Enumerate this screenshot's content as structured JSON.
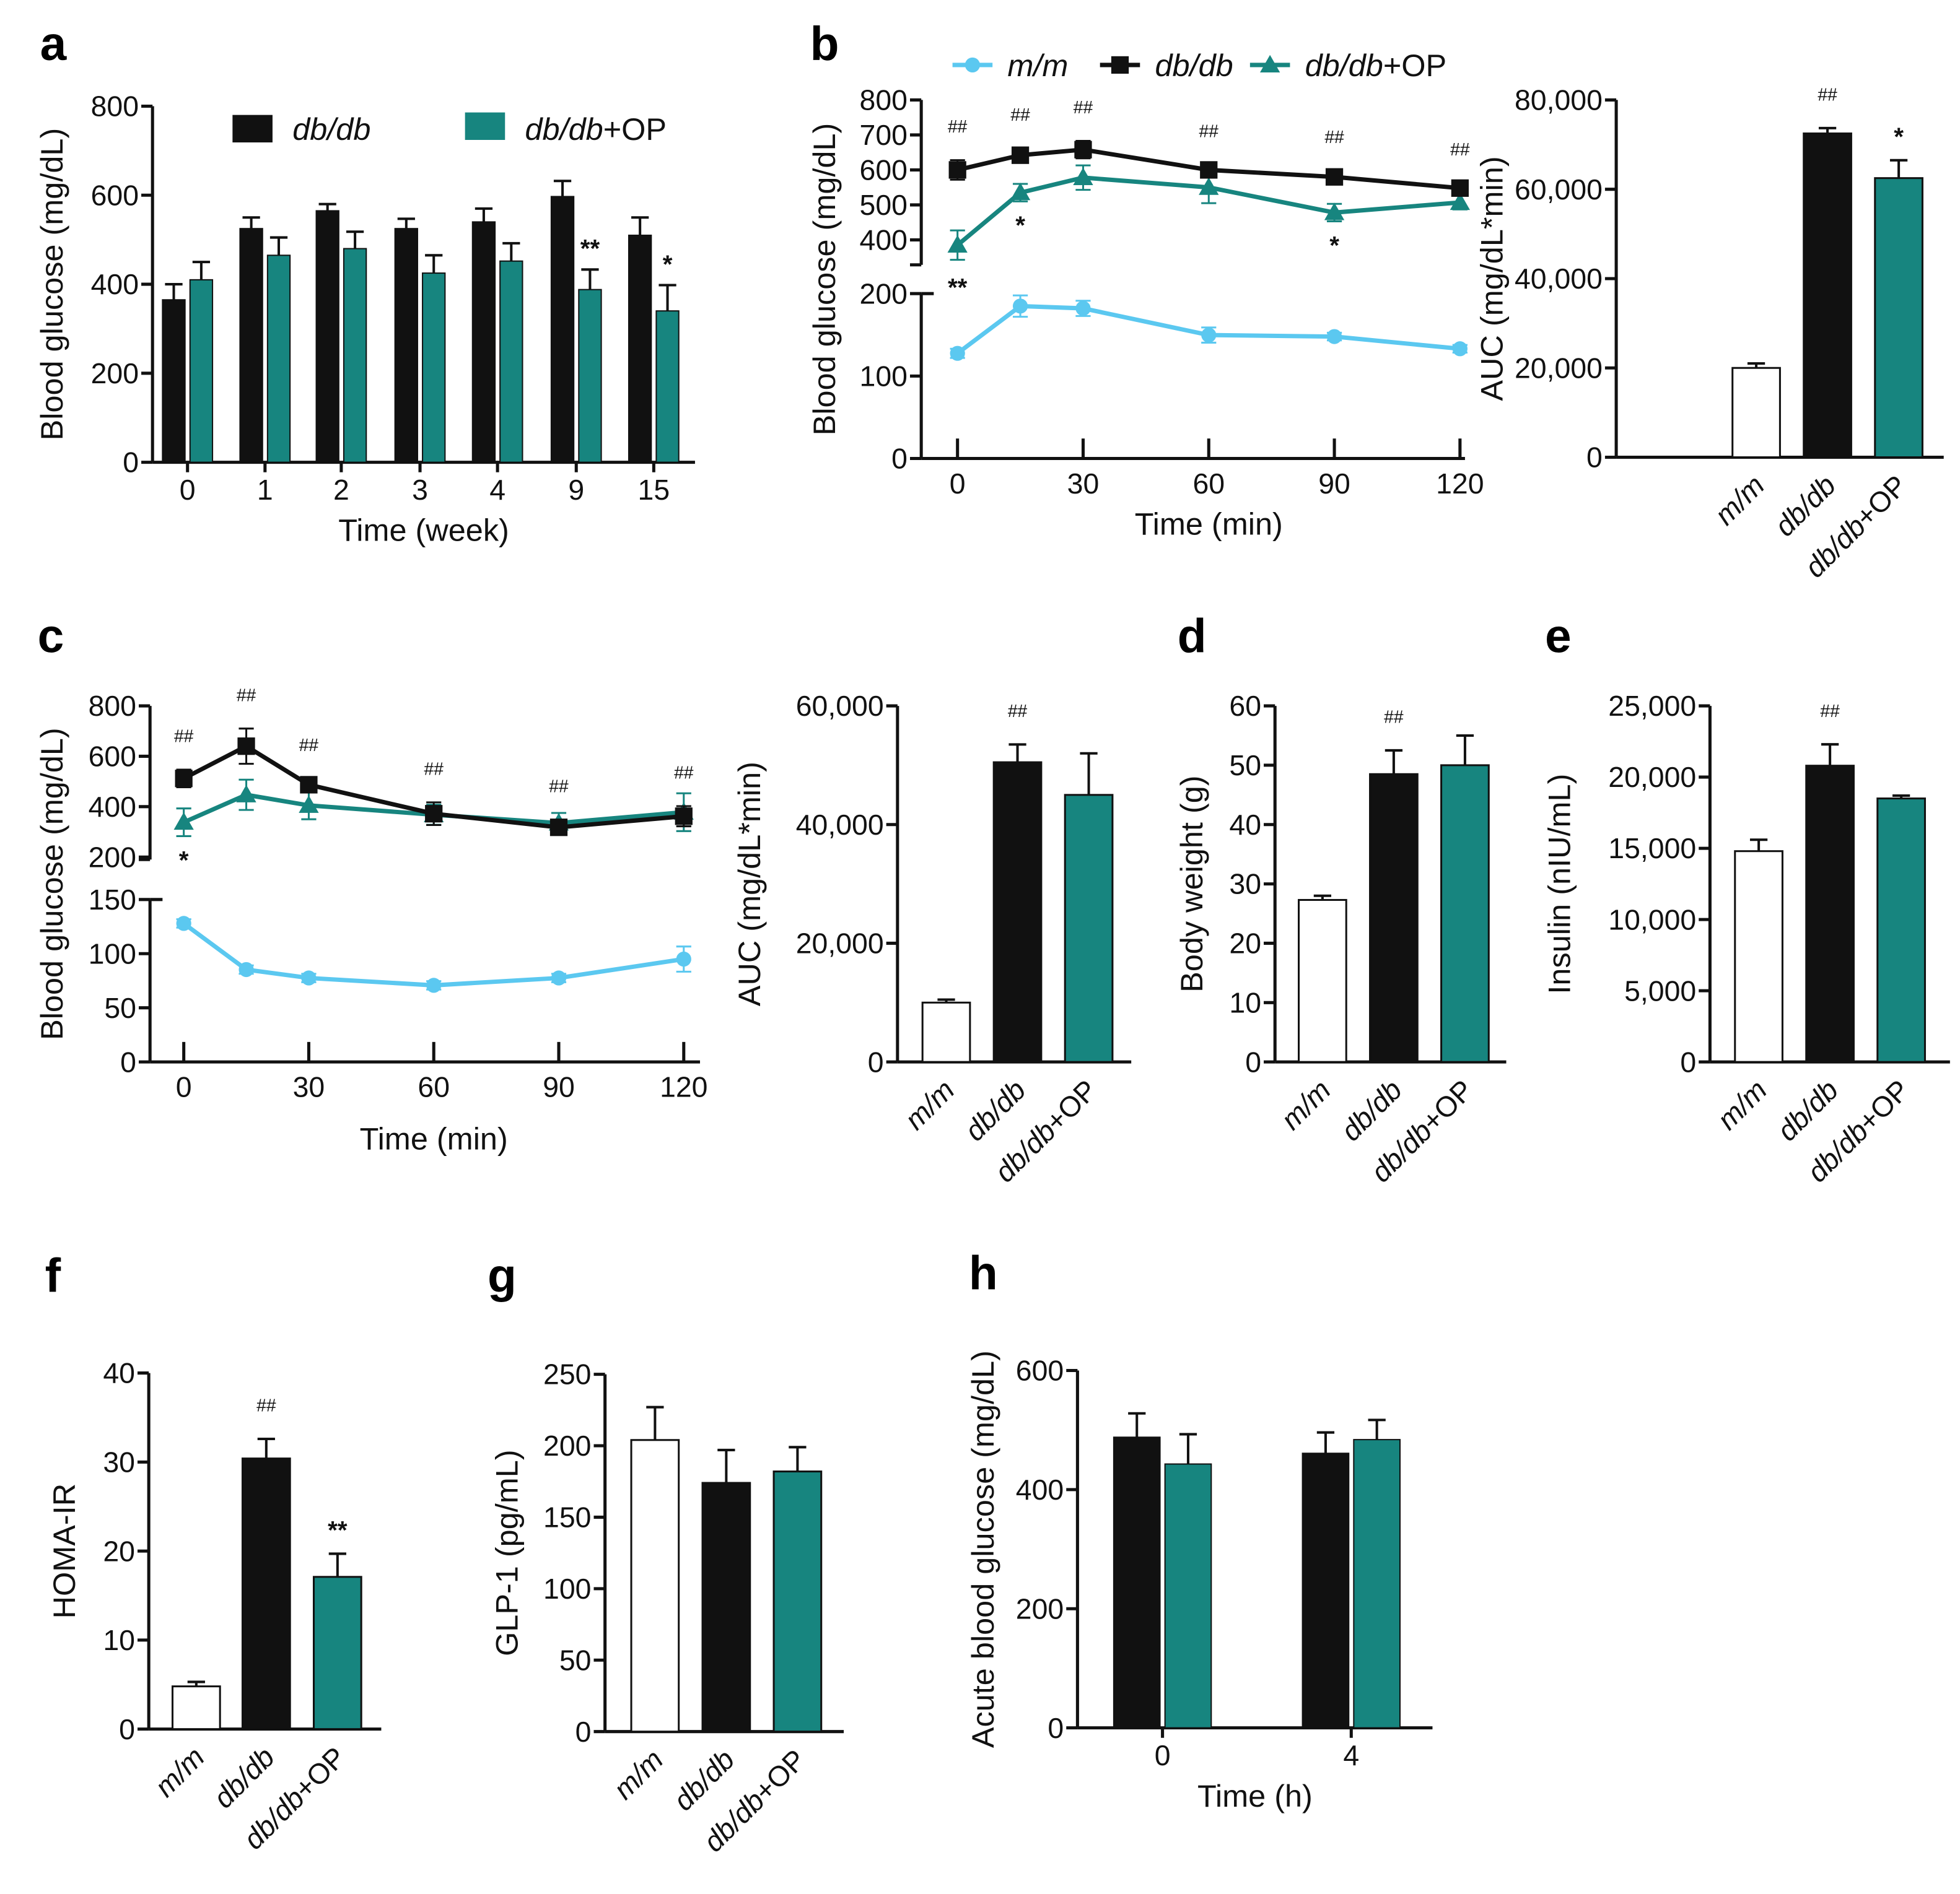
{
  "colors": {
    "mm": "#5bc8f0",
    "db": "#111111",
    "op": "#17857f",
    "mm_bar": "#ffffff"
  },
  "chart_data": [
    {
      "id": "a",
      "type": "bar",
      "letter": "a",
      "ylabel": "Blood glucose (mg/dL)",
      "xlabel": "Time (week)",
      "ylim": [
        0,
        800
      ],
      "yticks": [
        "0",
        "200",
        "400",
        "600",
        "800"
      ],
      "categories": [
        "0",
        "1",
        "2",
        "3",
        "4",
        "9",
        "15"
      ],
      "legend": [
        "db/db",
        "db/db+OP"
      ],
      "series": [
        {
          "name": "db/db",
          "values": [
            365,
            525,
            565,
            525,
            540,
            597,
            510
          ],
          "errors": [
            35,
            25,
            15,
            22,
            30,
            35,
            40
          ]
        },
        {
          "name": "db/db+OP",
          "values": [
            410,
            465,
            480,
            425,
            452,
            388,
            340
          ],
          "errors": [
            40,
            40,
            38,
            40,
            40,
            45,
            58
          ],
          "sig": [
            "",
            "",
            "",
            "",
            "",
            "**",
            "*"
          ]
        }
      ]
    },
    {
      "id": "b1",
      "type": "line",
      "letter": "b",
      "ylabel": "Blood glucose (mg/dL)",
      "xlabel": "Time (min)",
      "x": [
        0,
        15,
        30,
        60,
        90,
        120
      ],
      "xticks": [
        "0",
        "30",
        "60",
        "90",
        "120"
      ],
      "yticks_upper": [
        "400",
        "500",
        "600",
        "700",
        "800"
      ],
      "yticks_lower": [
        "0",
        "100",
        "200"
      ],
      "ylim_lower": [
        0,
        200
      ],
      "ylim_upper": [
        400,
        800
      ],
      "legend": [
        "m/m",
        "db/db",
        "db/db+OP"
      ],
      "series": [
        {
          "name": "m/m",
          "values": [
            138,
            200,
            197,
            162,
            160,
            144
          ],
          "errors": [
            6,
            14,
            10,
            10,
            5,
            5
          ]
        },
        {
          "name": "db/db",
          "values": [
            600,
            642,
            658,
            600,
            580,
            548
          ],
          "errors": [
            28,
            20,
            25,
            15,
            18,
            15
          ]
        },
        {
          "name": "db/db+OP",
          "values": [
            385,
            535,
            578,
            550,
            478,
            507
          ],
          "errors": [
            42,
            25,
            35,
            45,
            25,
            20
          ]
        }
      ],
      "hash": [
        "##",
        "##",
        "##",
        "##",
        "##",
        "##"
      ],
      "op_sig": [
        "",
        "*",
        "",
        "",
        "*",
        ""
      ],
      "mm_sig": [
        "**",
        "",
        "",
        "",
        "",
        ""
      ]
    },
    {
      "id": "b2",
      "type": "bar3",
      "ylabel": "AUC  (mg/dL*min)",
      "ylim": [
        0,
        80000
      ],
      "yticks": [
        "0",
        "20,000",
        "40,000",
        "60,000",
        "80,000"
      ],
      "categories": [
        "m/m",
        "db/db",
        "db/db+OP"
      ],
      "values": [
        20000,
        72500,
        62500
      ],
      "errors": [
        1000,
        1200,
        4000
      ],
      "sig": [
        "",
        "##",
        "*"
      ]
    },
    {
      "id": "c1",
      "type": "line",
      "letter": "c",
      "ylabel": "Blood glucose (mg/dL)",
      "xlabel": "Time (min)",
      "x": [
        0,
        15,
        30,
        60,
        90,
        120
      ],
      "xticks": [
        "0",
        "30",
        "60",
        "90",
        "120"
      ],
      "yticks_upper": [
        "200",
        "400",
        "600",
        "800"
      ],
      "yticks_lower": [
        "0",
        "50",
        "100",
        "150"
      ],
      "ylim_lower": [
        0,
        150
      ],
      "ylim_upper": [
        200,
        800
      ],
      "series": [
        {
          "name": "m/m",
          "values": [
            132,
            88,
            80,
            73,
            80,
            98
          ],
          "errors": [
            4,
            4,
            4,
            4,
            4,
            12
          ]
        },
        {
          "name": "db/db",
          "values": [
            512,
            640,
            487,
            372,
            318,
            362
          ],
          "errors": [
            35,
            70,
            25,
            45,
            30,
            40
          ]
        },
        {
          "name": "db/db+OP",
          "values": [
            338,
            447,
            405,
            368,
            335,
            378
          ],
          "errors": [
            55,
            60,
            55,
            40,
            40,
            75
          ]
        }
      ],
      "hash": [
        "##",
        "##",
        "##",
        "##",
        "##",
        "##"
      ],
      "op_sig": [
        "*",
        "",
        "",
        "",
        "",
        ""
      ],
      "mm_sig": [
        "",
        "",
        "",
        "",
        "",
        ""
      ]
    },
    {
      "id": "c2",
      "type": "bar3",
      "ylabel": "AUC (mg/dL*min)",
      "ylim": [
        0,
        60000
      ],
      "yticks": [
        "0",
        "20,000",
        "40,000",
        "60,000"
      ],
      "categories": [
        "m/m",
        "db/db",
        "db/db+OP"
      ],
      "values": [
        10000,
        50500,
        45000
      ],
      "errors": [
        500,
        3000,
        7000
      ],
      "sig": [
        "",
        "##",
        ""
      ]
    },
    {
      "id": "d",
      "type": "bar3",
      "letter": "d",
      "ylabel": "Body weight (g)",
      "ylim": [
        0,
        60
      ],
      "yticks": [
        "0",
        "10",
        "20",
        "30",
        "40",
        "50",
        "60"
      ],
      "categories": [
        "m/m",
        "db/db",
        "db/db+OP"
      ],
      "values": [
        27.3,
        48.5,
        50
      ],
      "errors": [
        0.7,
        4,
        5
      ],
      "sig": [
        "",
        "##",
        ""
      ]
    },
    {
      "id": "e",
      "type": "bar3",
      "letter": "e",
      "ylabel": "Insulin (nIU/mL)",
      "ylim": [
        0,
        25000
      ],
      "yticks": [
        "0",
        "5,000",
        "10,000",
        "15,000",
        "20,000",
        "25,000"
      ],
      "categories": [
        "m/m",
        "db/db",
        "db/db+OP"
      ],
      "values": [
        14800,
        20800,
        18500
      ],
      "errors": [
        800,
        1500,
        200
      ],
      "sig": [
        "",
        "##",
        ""
      ]
    },
    {
      "id": "f",
      "type": "bar3",
      "letter": "f",
      "ylabel": "HOMA-IR",
      "ylim": [
        0,
        40
      ],
      "yticks": [
        "0",
        "10",
        "20",
        "30",
        "40"
      ],
      "categories": [
        "m/m",
        "db/db",
        "db/db+OP"
      ],
      "values": [
        4.8,
        30.4,
        17.1
      ],
      "errors": [
        0.5,
        2.2,
        2.6
      ],
      "sig": [
        "",
        "##",
        "**"
      ]
    },
    {
      "id": "g",
      "type": "bar3",
      "letter": "g",
      "ylabel": "GLP-1 (pg/mL)",
      "ylim": [
        0,
        250
      ],
      "yticks": [
        "0",
        "50",
        "100",
        "150",
        "200",
        "250"
      ],
      "categories": [
        "m/m",
        "db/db",
        "db/db+OP"
      ],
      "values": [
        204,
        174,
        182
      ],
      "errors": [
        23,
        23,
        17
      ],
      "sig": [
        "",
        "",
        ""
      ]
    },
    {
      "id": "h",
      "type": "bar",
      "letter": "h",
      "ylabel": "Acute blood glucose (mg/dL)",
      "xlabel": "Time (h)",
      "ylim": [
        0,
        600
      ],
      "yticks": [
        "0",
        "200",
        "400",
        "600"
      ],
      "categories": [
        "0",
        "4"
      ],
      "series": [
        {
          "name": "db/db",
          "values": [
            488,
            461
          ],
          "errors": [
            40,
            35
          ]
        },
        {
          "name": "db/db+OP",
          "values": [
            443,
            484
          ],
          "errors": [
            50,
            33
          ],
          "sig": [
            "",
            ""
          ]
        }
      ]
    }
  ]
}
